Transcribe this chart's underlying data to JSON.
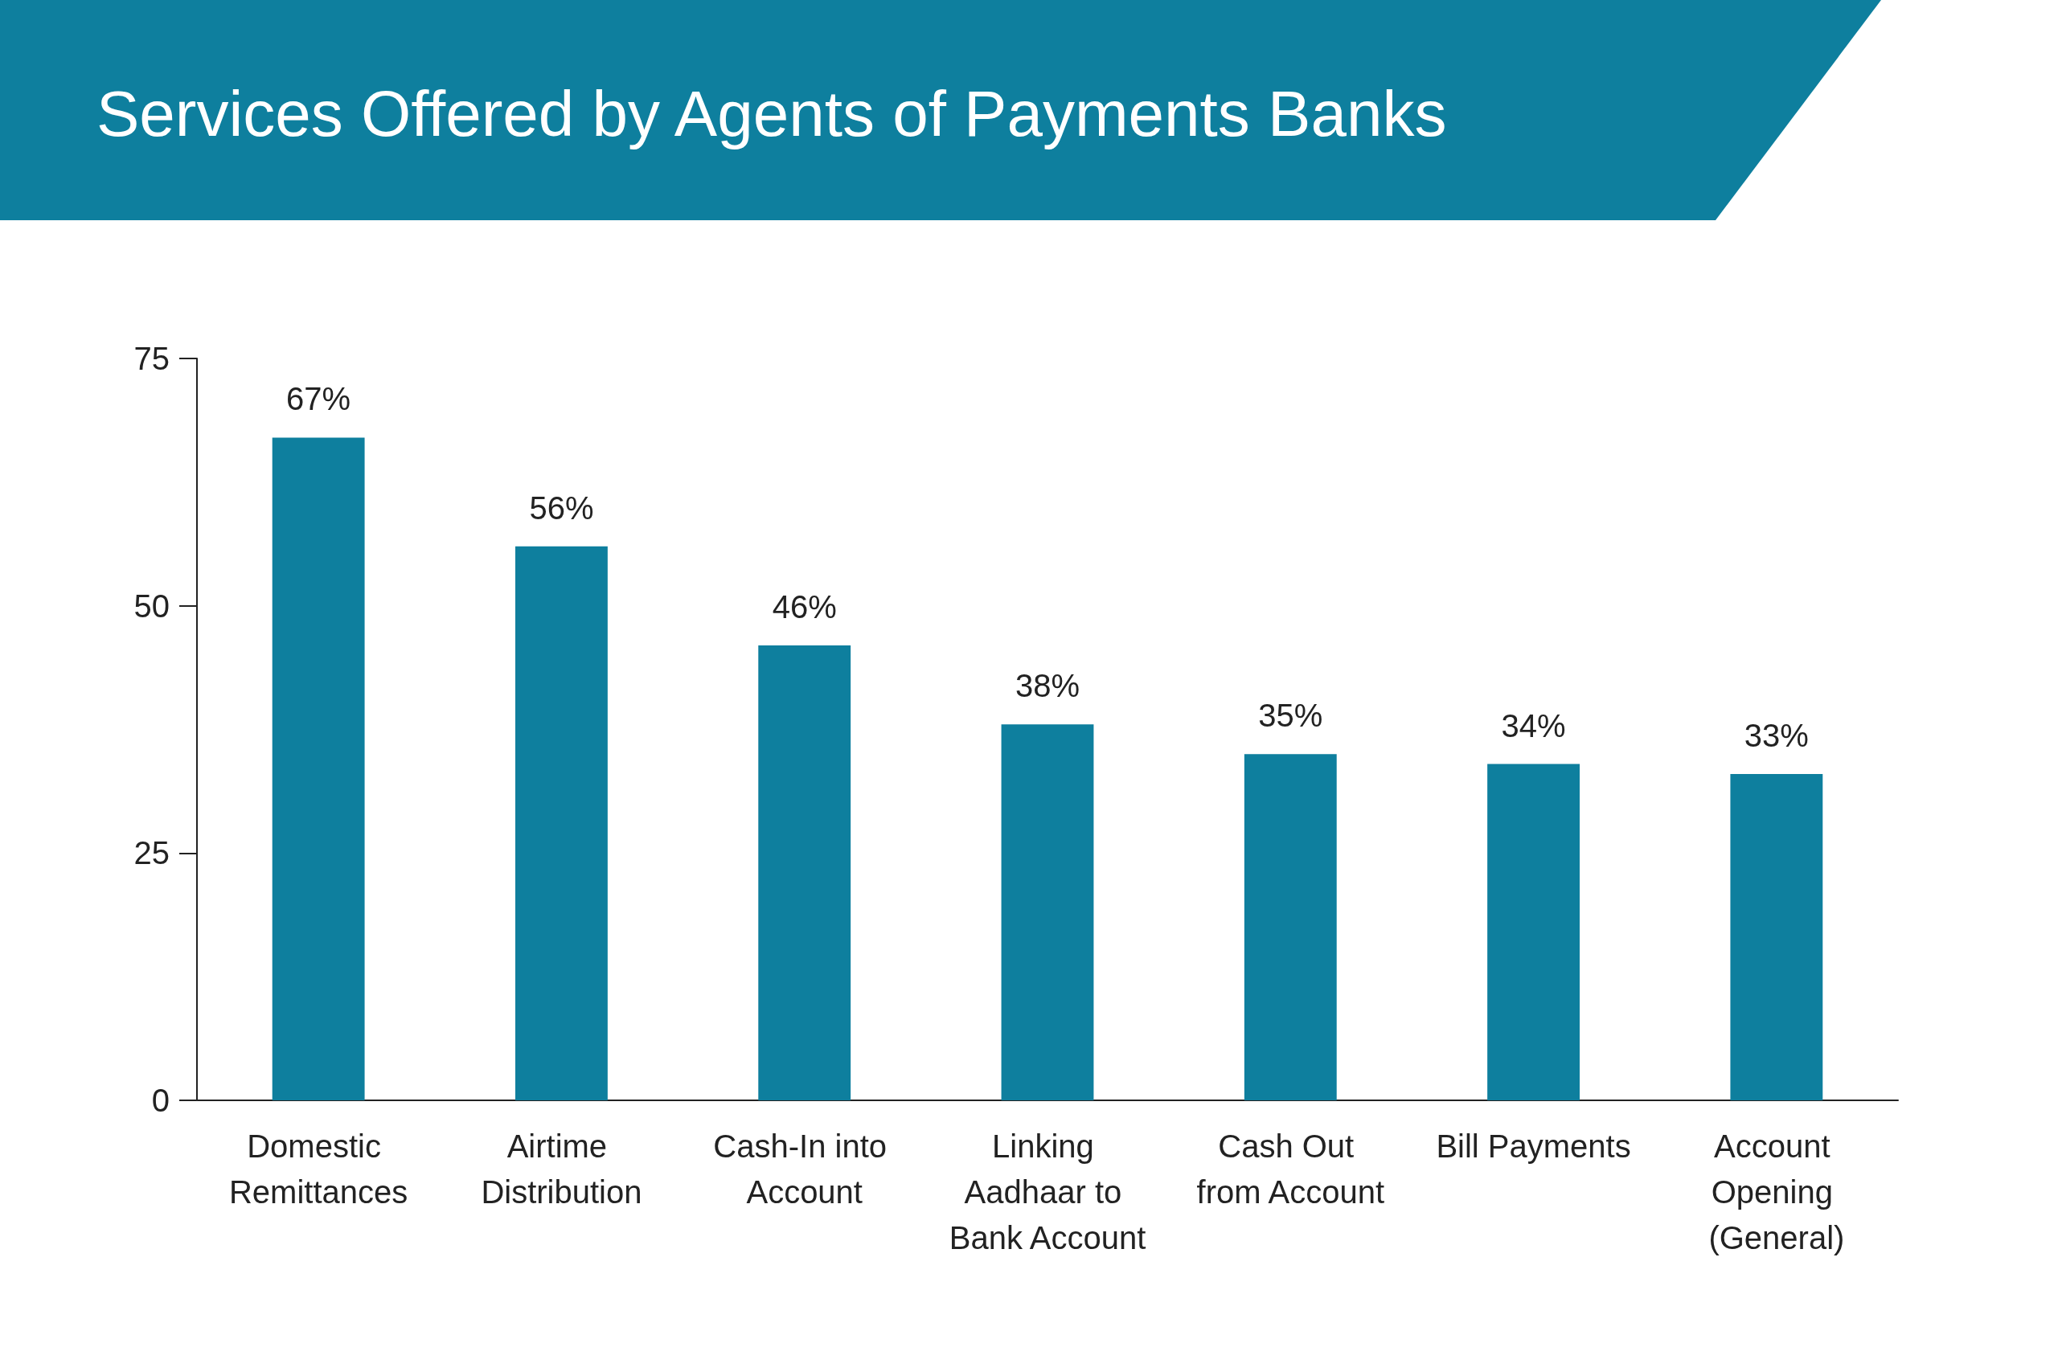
{
  "chart_data": {
    "type": "bar",
    "title": "Services Offered by Agents of Payments Banks",
    "categories": [
      "Domestic Remittances",
      "Airtime Distribution",
      "Cash-In into Account",
      "Linking Aadhaar to Bank Account",
      "Cash Out from Account",
      "Bill Payments",
      "Account Opening (General)"
    ],
    "values": [
      67,
      56,
      46,
      38,
      35,
      34,
      33
    ],
    "value_labels": [
      "67%",
      "56%",
      "46%",
      "38%",
      "35%",
      "34%",
      "33%"
    ],
    "color": "#0e7f9e",
    "ylim": [
      0,
      75
    ],
    "yticks": [
      0,
      25,
      50,
      75
    ],
    "grid": false
  }
}
